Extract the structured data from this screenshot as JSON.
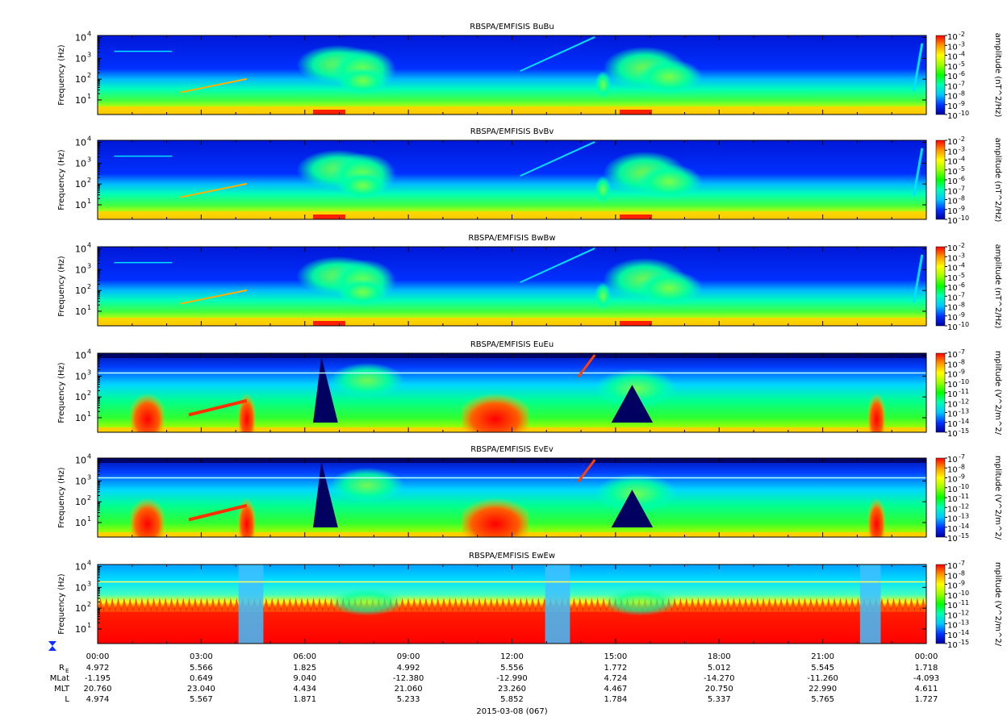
{
  "chart_data": [
    {
      "type": "heatmap",
      "title": "RBSPA/EMFISIS  BuBu",
      "ylabel": "Frequency (Hz)",
      "y_scale": "log",
      "y_ticks": [
        "10",
        "10",
        "10",
        "10"
      ],
      "y_tick_exponents": [
        "1",
        "2",
        "3",
        "4"
      ],
      "colorbar_label": "amplitude (nT^2/Hz)",
      "colorbar_min_exp": -10,
      "colorbar_max_exp": -2,
      "colorbar_ticks": [
        "-2",
        "-3",
        "-4",
        "-5",
        "-6",
        "-7",
        "-8",
        "-9",
        "-10"
      ]
    },
    {
      "type": "heatmap",
      "title": "RBSPA/EMFISIS  BvBv",
      "ylabel": "Frequency (Hz)",
      "y_scale": "log",
      "y_ticks": [
        "10",
        "10",
        "10",
        "10"
      ],
      "y_tick_exponents": [
        "1",
        "2",
        "3",
        "4"
      ],
      "colorbar_label": "amplitude (nT^2/Hz)",
      "colorbar_min_exp": -10,
      "colorbar_max_exp": -2,
      "colorbar_ticks": [
        "-2",
        "-3",
        "-4",
        "-5",
        "-6",
        "-7",
        "-8",
        "-9",
        "-10"
      ]
    },
    {
      "type": "heatmap",
      "title": "RBSPA/EMFISIS  BwBw",
      "ylabel": "Frequency (Hz)",
      "y_scale": "log",
      "y_ticks": [
        "10",
        "10",
        "10",
        "10"
      ],
      "y_tick_exponents": [
        "1",
        "2",
        "3",
        "4"
      ],
      "colorbar_label": "amplitude (nT^2/Hz)",
      "colorbar_min_exp": -10,
      "colorbar_max_exp": -2,
      "colorbar_ticks": [
        "-2",
        "-3",
        "-4",
        "-5",
        "-6",
        "-7",
        "-8",
        "-9",
        "-10"
      ]
    },
    {
      "type": "heatmap",
      "title": "RBSPA/EMFISIS  EuEu",
      "ylabel": "Frequency (Hz)",
      "y_scale": "log",
      "y_ticks": [
        "10",
        "10",
        "10",
        "10"
      ],
      "y_tick_exponents": [
        "1",
        "2",
        "3",
        "4"
      ],
      "colorbar_label": "mplitude (V^2/m^2/",
      "colorbar_min_exp": -15,
      "colorbar_max_exp": -7,
      "colorbar_ticks": [
        "-7",
        "-8",
        "-9",
        "-10",
        "-11",
        "-12",
        "-13",
        "-14",
        "-15"
      ]
    },
    {
      "type": "heatmap",
      "title": "RBSPA/EMFISIS  EvEv",
      "ylabel": "Frequency (Hz)",
      "y_scale": "log",
      "y_ticks": [
        "10",
        "10",
        "10",
        "10"
      ],
      "y_tick_exponents": [
        "1",
        "2",
        "3",
        "4"
      ],
      "colorbar_label": "mplitude (V^2/m^2/",
      "colorbar_min_exp": -15,
      "colorbar_max_exp": -7,
      "colorbar_ticks": [
        "-7",
        "-8",
        "-9",
        "-10",
        "-11",
        "-12",
        "-13",
        "-14",
        "-15"
      ]
    },
    {
      "type": "heatmap",
      "title": "RBSPA/EMFISIS  EwEw",
      "ylabel": "Frequency (Hz)",
      "y_scale": "log",
      "y_ticks": [
        "10",
        "10",
        "10",
        "10"
      ],
      "y_tick_exponents": [
        "1",
        "2",
        "3",
        "4"
      ],
      "colorbar_label": "mplitude (V^2/m^2/",
      "colorbar_min_exp": -15,
      "colorbar_max_exp": -7,
      "colorbar_ticks": [
        "-7",
        "-8",
        "-9",
        "-10",
        "-11",
        "-12",
        "-13",
        "-14",
        "-15"
      ]
    }
  ],
  "x_axis": {
    "tick_labels": [
      "00:00",
      "03:00",
      "06:00",
      "09:00",
      "12:00",
      "15:00",
      "18:00",
      "21:00",
      "00:00"
    ],
    "date_label": "2015-03-08 (067)"
  },
  "ephemeris": {
    "rows": [
      {
        "name": "R",
        "subscript": "E",
        "values": [
          "4.972",
          "5.566",
          "1.825",
          "4.992",
          "5.556",
          "1.772",
          "5.012",
          "5.545",
          "1.718"
        ]
      },
      {
        "name": "MLat",
        "subscript": "",
        "values": [
          "-1.195",
          "0.649",
          "9.040",
          "-12.380",
          "-12.990",
          "4.724",
          "-14.270",
          "-11.260",
          "-4.093"
        ]
      },
      {
        "name": "MLT",
        "subscript": "",
        "values": [
          "20.760",
          "23.040",
          "4.434",
          "21.060",
          "23.260",
          "4.467",
          "20.750",
          "22.990",
          "4.611"
        ]
      },
      {
        "name": "L",
        "subscript": "",
        "values": [
          "4.974",
          "5.567",
          "1.871",
          "5.233",
          "5.852",
          "1.784",
          "5.337",
          "5.765",
          "1.727"
        ]
      }
    ]
  },
  "colors": {
    "low": "#00007f",
    "mid": "#00ff66",
    "high": "#ff0000"
  },
  "icons": {
    "timeline_marker": "hourglass-icon"
  }
}
